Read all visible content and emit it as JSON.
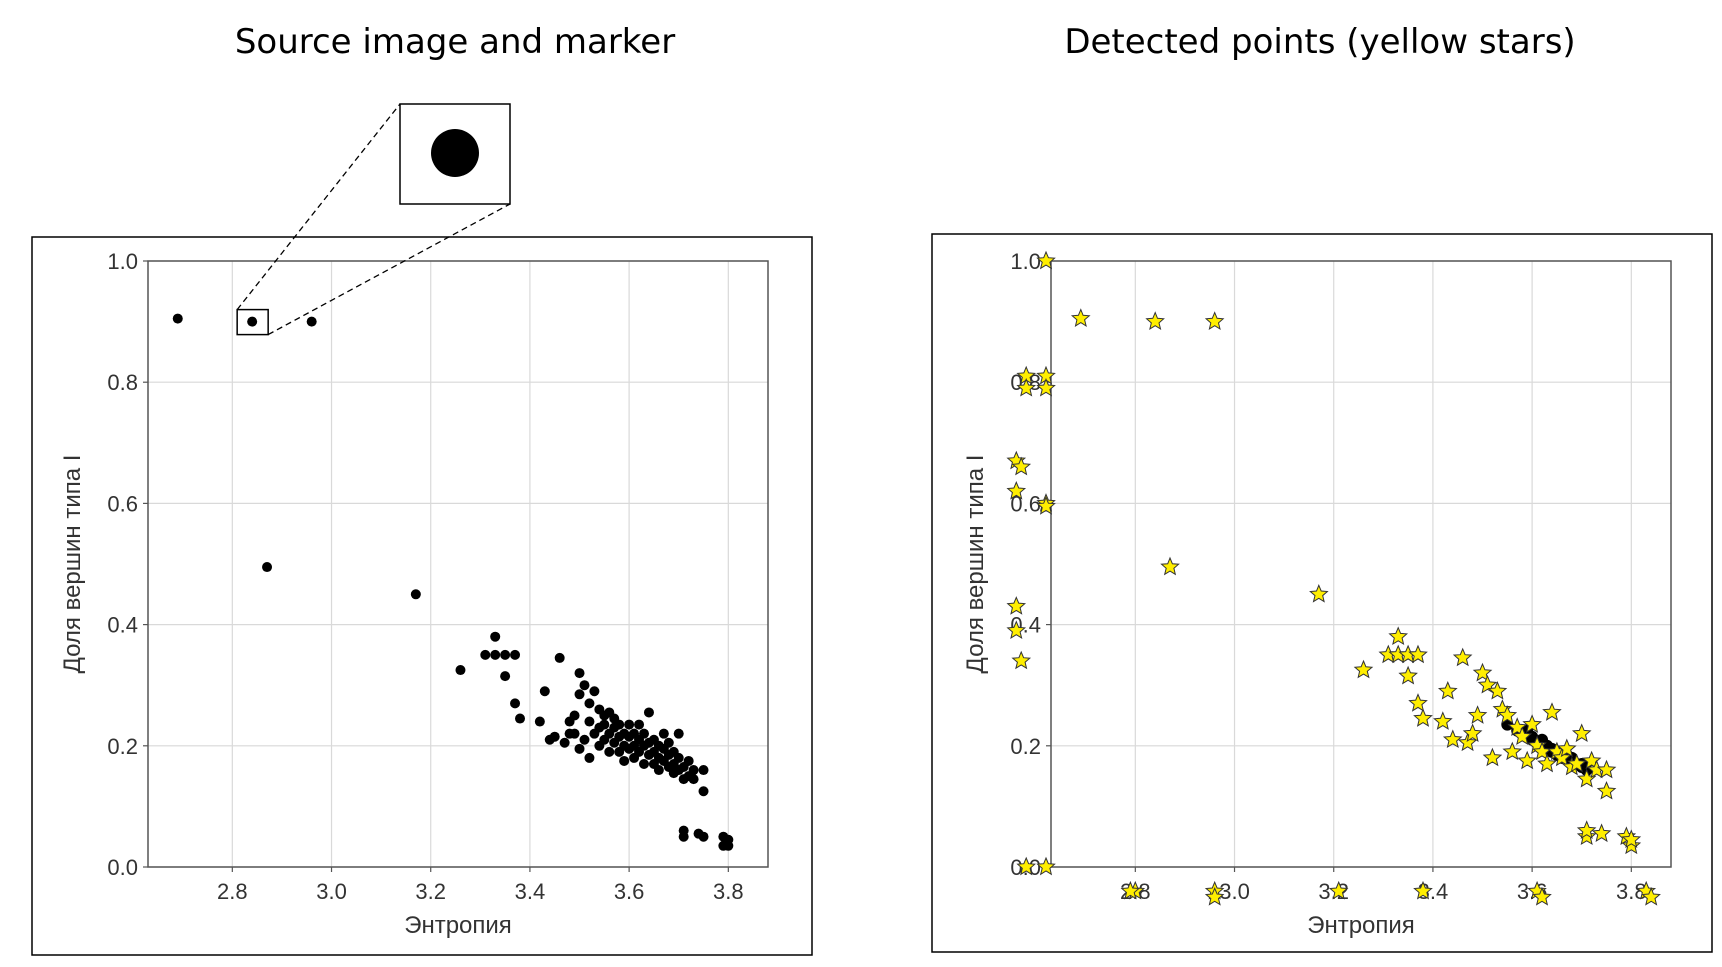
{
  "panels": {
    "left_title": "Source image and marker",
    "right_title": "Detected points (yellow stars)"
  },
  "colors": {
    "marker": "#000000",
    "star_fill": "#ffee00",
    "star_stroke": "#333333",
    "grid": "#d9d9d9",
    "axis": "#555555"
  },
  "chart_data": [
    {
      "type": "scatter",
      "title": "Source image and marker",
      "xlabel": "Энтропия",
      "ylabel": "Доля вершин типа I",
      "xlim": [
        2.63,
        3.88
      ],
      "ylim": [
        0.0,
        1.0
      ],
      "xticks": [
        2.8,
        3.0,
        3.2,
        3.4,
        3.6,
        3.8
      ],
      "yticks": [
        0.0,
        0.2,
        0.4,
        0.6,
        0.8,
        1.0
      ],
      "xtick_labels": [
        "2.8",
        "3.0",
        "3.2",
        "3.4",
        "3.6",
        "3.8"
      ],
      "ytick_labels": [
        "0.0",
        "0.2",
        "0.4",
        "0.6",
        "0.8",
        "1.0"
      ],
      "grid": true,
      "marker_zoom_point": [
        2.84,
        0.9
      ],
      "points": [
        [
          2.69,
          0.905
        ],
        [
          2.84,
          0.9
        ],
        [
          2.96,
          0.9
        ],
        [
          2.87,
          0.495
        ],
        [
          3.17,
          0.45
        ],
        [
          3.26,
          0.325
        ],
        [
          3.31,
          0.35
        ],
        [
          3.33,
          0.35
        ],
        [
          3.33,
          0.38
        ],
        [
          3.35,
          0.35
        ],
        [
          3.35,
          0.315
        ],
        [
          3.37,
          0.35
        ],
        [
          3.37,
          0.27
        ],
        [
          3.38,
          0.245
        ],
        [
          3.42,
          0.24
        ],
        [
          3.43,
          0.29
        ],
        [
          3.44,
          0.21
        ],
        [
          3.45,
          0.215
        ],
        [
          3.46,
          0.345
        ],
        [
          3.47,
          0.205
        ],
        [
          3.48,
          0.22
        ],
        [
          3.48,
          0.24
        ],
        [
          3.49,
          0.22
        ],
        [
          3.49,
          0.25
        ],
        [
          3.5,
          0.195
        ],
        [
          3.5,
          0.32
        ],
        [
          3.5,
          0.285
        ],
        [
          3.51,
          0.3
        ],
        [
          3.51,
          0.21
        ],
        [
          3.52,
          0.18
        ],
        [
          3.52,
          0.24
        ],
        [
          3.52,
          0.27
        ],
        [
          3.53,
          0.22
        ],
        [
          3.53,
          0.29
        ],
        [
          3.54,
          0.26
        ],
        [
          3.54,
          0.23
        ],
        [
          3.54,
          0.2
        ],
        [
          3.55,
          0.25
        ],
        [
          3.55,
          0.21
        ],
        [
          3.55,
          0.235
        ],
        [
          3.56,
          0.19
        ],
        [
          3.56,
          0.22
        ],
        [
          3.56,
          0.255
        ],
        [
          3.57,
          0.23
        ],
        [
          3.57,
          0.205
        ],
        [
          3.57,
          0.245
        ],
        [
          3.58,
          0.215
        ],
        [
          3.58,
          0.19
        ],
        [
          3.58,
          0.235
        ],
        [
          3.59,
          0.22
        ],
        [
          3.59,
          0.2
        ],
        [
          3.59,
          0.175
        ],
        [
          3.6,
          0.215
        ],
        [
          3.6,
          0.195
        ],
        [
          3.6,
          0.235
        ],
        [
          3.61,
          0.2
        ],
        [
          3.61,
          0.22
        ],
        [
          3.61,
          0.18
        ],
        [
          3.62,
          0.19
        ],
        [
          3.62,
          0.21
        ],
        [
          3.62,
          0.235
        ],
        [
          3.63,
          0.2
        ],
        [
          3.63,
          0.17
        ],
        [
          3.63,
          0.22
        ],
        [
          3.64,
          0.185
        ],
        [
          3.64,
          0.205
        ],
        [
          3.64,
          0.255
        ],
        [
          3.65,
          0.19
        ],
        [
          3.65,
          0.17
        ],
        [
          3.65,
          0.21
        ],
        [
          3.66,
          0.18
        ],
        [
          3.66,
          0.2
        ],
        [
          3.66,
          0.16
        ],
        [
          3.67,
          0.175
        ],
        [
          3.67,
          0.195
        ],
        [
          3.67,
          0.22
        ],
        [
          3.68,
          0.165
        ],
        [
          3.68,
          0.185
        ],
        [
          3.68,
          0.205
        ],
        [
          3.69,
          0.17
        ],
        [
          3.69,
          0.155
        ],
        [
          3.69,
          0.19
        ],
        [
          3.7,
          0.18
        ],
        [
          3.7,
          0.16
        ],
        [
          3.7,
          0.22
        ],
        [
          3.71,
          0.165
        ],
        [
          3.71,
          0.145
        ],
        [
          3.71,
          0.05
        ],
        [
          3.71,
          0.06
        ],
        [
          3.72,
          0.175
        ],
        [
          3.72,
          0.15
        ],
        [
          3.73,
          0.16
        ],
        [
          3.73,
          0.145
        ],
        [
          3.74,
          0.055
        ],
        [
          3.75,
          0.05
        ],
        [
          3.75,
          0.16
        ],
        [
          3.75,
          0.125
        ],
        [
          3.79,
          0.05
        ],
        [
          3.79,
          0.035
        ],
        [
          3.8,
          0.045
        ],
        [
          3.8,
          0.035
        ]
      ]
    },
    {
      "type": "scatter",
      "title": "Detected points (yellow stars)",
      "xlabel": "Энтропия",
      "ylabel": "Доля вершин типа I",
      "xlim": [
        2.63,
        3.88
      ],
      "ylim": [
        0.0,
        1.0
      ],
      "xticks": [
        2.8,
        3.0,
        3.2,
        3.4,
        3.6,
        3.8
      ],
      "yticks": [
        0.0,
        0.2,
        0.4,
        0.6,
        0.8,
        1.0
      ],
      "xtick_labels": [
        "2.8",
        "3.0",
        "3.2",
        "3.4",
        "3.6",
        "3.8"
      ],
      "ytick_labels": [
        "0.0",
        "0.2",
        "0.4",
        "0.6",
        "0.8",
        "1.0"
      ],
      "grid": true,
      "detections": [
        [
          2.62,
          1.0
        ],
        [
          2.69,
          0.905
        ],
        [
          2.84,
          0.9
        ],
        [
          2.96,
          0.9
        ],
        [
          2.87,
          0.495
        ],
        [
          3.17,
          0.45
        ],
        [
          3.26,
          0.325
        ],
        [
          3.31,
          0.35
        ],
        [
          3.33,
          0.35
        ],
        [
          3.33,
          0.38
        ],
        [
          3.35,
          0.35
        ],
        [
          3.35,
          0.315
        ],
        [
          3.37,
          0.35
        ],
        [
          3.37,
          0.27
        ],
        [
          3.38,
          0.245
        ],
        [
          3.42,
          0.24
        ],
        [
          3.43,
          0.29
        ],
        [
          3.44,
          0.21
        ],
        [
          3.46,
          0.345
        ],
        [
          3.47,
          0.205
        ],
        [
          3.48,
          0.22
        ],
        [
          3.49,
          0.25
        ],
        [
          3.5,
          0.32
        ],
        [
          3.51,
          0.3
        ],
        [
          3.52,
          0.18
        ],
        [
          3.53,
          0.29
        ],
        [
          3.54,
          0.26
        ],
        [
          3.55,
          0.25
        ],
        [
          3.56,
          0.19
        ],
        [
          3.57,
          0.23
        ],
        [
          3.58,
          0.215
        ],
        [
          3.59,
          0.175
        ],
        [
          3.6,
          0.235
        ],
        [
          3.61,
          0.2
        ],
        [
          3.62,
          0.19
        ],
        [
          3.63,
          0.17
        ],
        [
          3.64,
          0.255
        ],
        [
          3.65,
          0.19
        ],
        [
          3.66,
          0.18
        ],
        [
          3.67,
          0.195
        ],
        [
          3.68,
          0.165
        ],
        [
          3.69,
          0.17
        ],
        [
          3.7,
          0.22
        ],
        [
          3.71,
          0.145
        ],
        [
          3.71,
          0.05
        ],
        [
          3.71,
          0.06
        ],
        [
          3.72,
          0.175
        ],
        [
          3.73,
          0.16
        ],
        [
          3.74,
          0.055
        ],
        [
          3.75,
          0.16
        ],
        [
          3.75,
          0.125
        ],
        [
          3.79,
          0.05
        ],
        [
          3.8,
          0.035
        ],
        [
          3.8,
          0.045
        ],
        [
          2.58,
          0.81
        ],
        [
          2.62,
          0.81
        ],
        [
          2.62,
          0.79
        ],
        [
          2.58,
          0.79
        ],
        [
          2.62,
          0.6
        ],
        [
          2.62,
          0.595
        ],
        [
          2.56,
          0.67
        ],
        [
          2.57,
          0.66
        ],
        [
          2.56,
          0.62
        ],
        [
          2.56,
          0.43
        ],
        [
          2.56,
          0.39
        ],
        [
          2.57,
          0.34
        ],
        [
          2.58,
          0.0
        ],
        [
          2.62,
          0.0
        ],
        [
          2.8,
          -0.04
        ],
        [
          2.79,
          -0.04
        ],
        [
          2.96,
          -0.04
        ],
        [
          2.96,
          -0.05
        ],
        [
          3.21,
          -0.04
        ],
        [
          3.38,
          -0.04
        ],
        [
          3.61,
          -0.04
        ],
        [
          3.62,
          -0.05
        ],
        [
          3.83,
          -0.04
        ],
        [
          3.84,
          -0.05
        ]
      ],
      "dense_points": [
        [
          3.55,
          0.235
        ],
        [
          3.57,
          0.225
        ],
        [
          3.58,
          0.22
        ],
        [
          3.59,
          0.215
        ],
        [
          3.6,
          0.21
        ],
        [
          3.61,
          0.205
        ],
        [
          3.62,
          0.21
        ],
        [
          3.63,
          0.2
        ],
        [
          3.64,
          0.19
        ],
        [
          3.65,
          0.185
        ],
        [
          3.66,
          0.18
        ],
        [
          3.67,
          0.185
        ],
        [
          3.68,
          0.175
        ],
        [
          3.69,
          0.17
        ],
        [
          3.7,
          0.165
        ],
        [
          3.71,
          0.16
        ],
        [
          3.59,
          0.225
        ],
        [
          3.6,
          0.215
        ],
        [
          3.62,
          0.2
        ],
        [
          3.64,
          0.195
        ],
        [
          3.66,
          0.19
        ],
        [
          3.68,
          0.18
        ],
        [
          3.7,
          0.17
        ]
      ]
    }
  ]
}
